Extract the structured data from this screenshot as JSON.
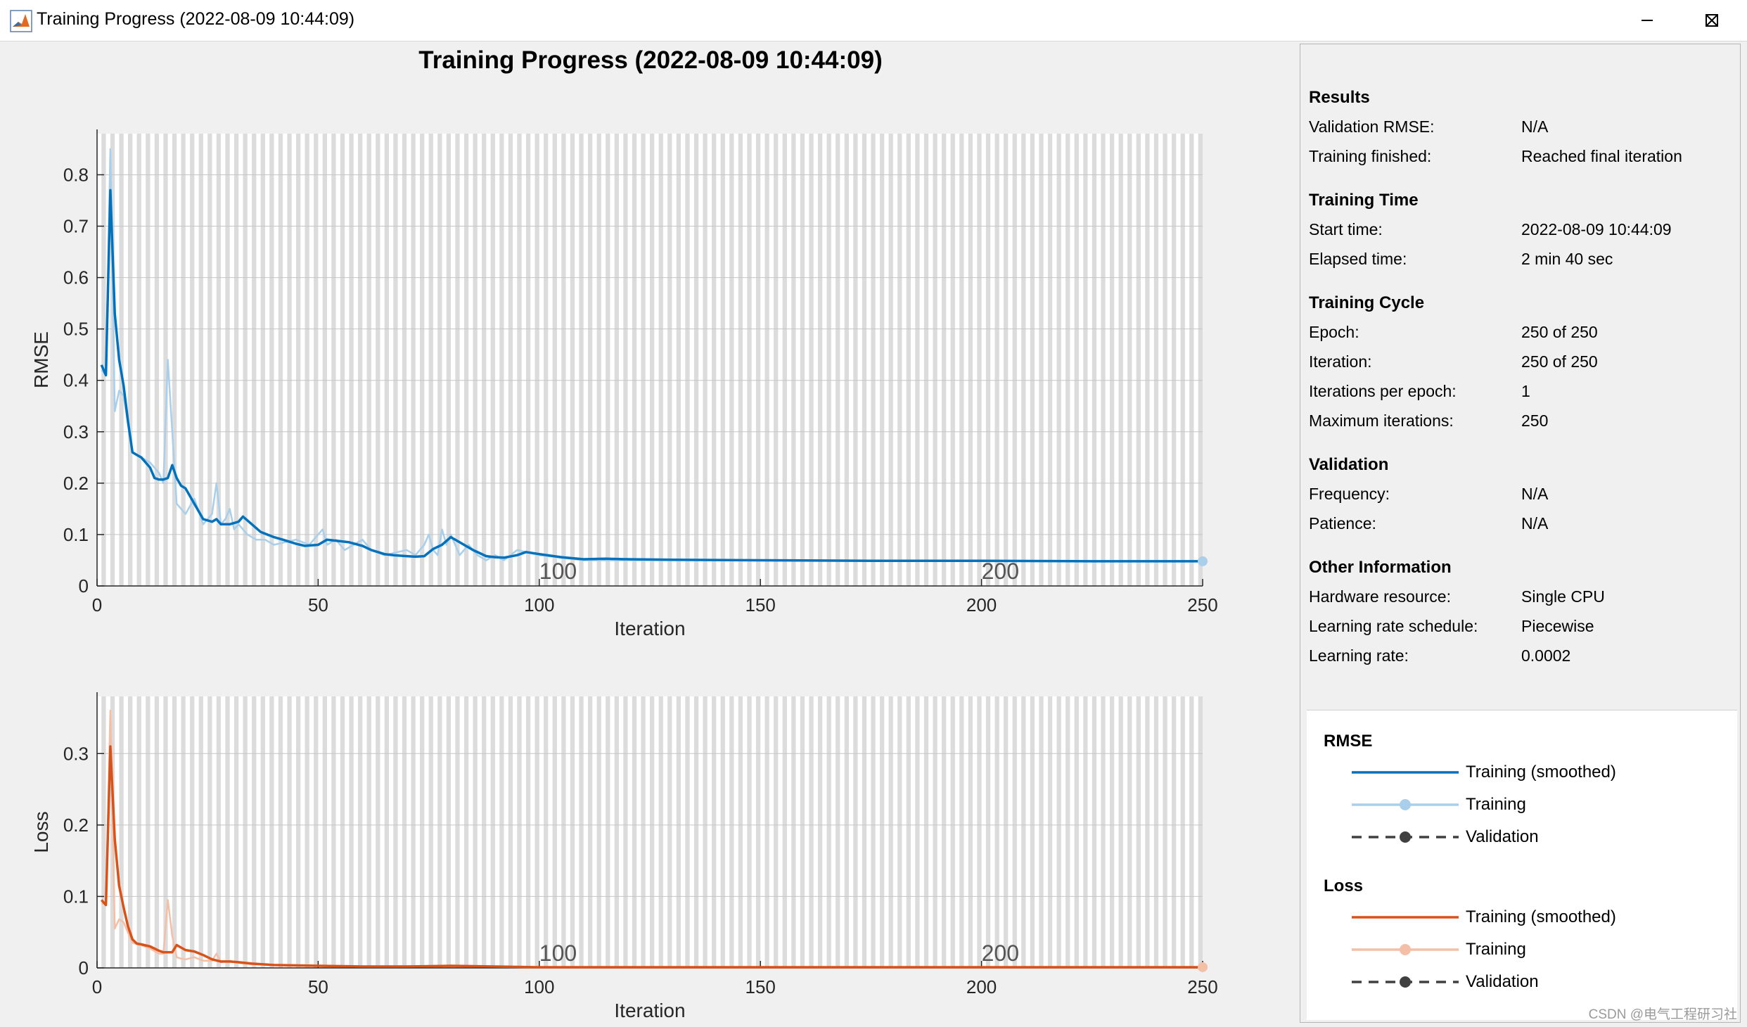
{
  "window": {
    "title": "Training Progress (2022-08-09 10:44:09)",
    "icon": "matlab-icon",
    "controls": [
      "minimize-icon",
      "maximize-icon",
      "close-icon"
    ]
  },
  "main": {
    "title": "Training Progress (2022-08-09 10:44:09)"
  },
  "colors": {
    "rmse_smoothed": "#0072bd",
    "rmse_raw": "#a9cfea",
    "loss_smoothed": "#d95319",
    "loss_raw": "#f4bfa7",
    "validation": "#404040",
    "stripe": "#dcdcdc"
  },
  "chart_data": [
    {
      "type": "line",
      "ylabel": "RMSE",
      "xlabel": "Iteration",
      "xlim": [
        0,
        250
      ],
      "ylim": [
        0,
        0.88
      ],
      "xticks": [
        0,
        50,
        100,
        150,
        200,
        250
      ],
      "yticks": [
        0,
        0.1,
        0.2,
        0.3,
        0.4,
        0.5,
        0.6,
        0.7,
        0.8
      ],
      "ytick_labels": [
        "0",
        "0.1",
        "0.2",
        "0.3",
        "0.4",
        "0.5",
        "0.6",
        "0.7",
        "0.8"
      ],
      "epoch_markers": [
        {
          "x": 100,
          "label": "100"
        },
        {
          "x": 200,
          "label": "200"
        }
      ],
      "grid": true,
      "series": [
        {
          "name": "Training (smoothed)",
          "x": [
            1,
            2,
            3,
            4,
            5,
            6,
            7,
            8,
            9,
            10,
            11,
            12,
            13,
            14,
            15,
            16,
            17,
            18,
            19,
            20,
            22,
            24,
            26,
            27,
            28,
            30,
            32,
            33,
            35,
            37,
            40,
            42,
            45,
            47,
            50,
            52,
            55,
            57,
            60,
            62,
            65,
            67,
            70,
            72,
            74,
            76,
            78,
            80,
            82,
            85,
            88,
            90,
            92,
            95,
            97,
            100,
            105,
            110,
            115,
            120,
            130,
            150,
            175,
            200,
            225,
            250
          ],
          "y": [
            0.43,
            0.41,
            0.77,
            0.53,
            0.44,
            0.39,
            0.32,
            0.26,
            0.255,
            0.25,
            0.24,
            0.23,
            0.21,
            0.207,
            0.207,
            0.21,
            0.235,
            0.21,
            0.195,
            0.19,
            0.16,
            0.13,
            0.125,
            0.13,
            0.12,
            0.12,
            0.125,
            0.135,
            0.12,
            0.105,
            0.095,
            0.09,
            0.082,
            0.078,
            0.08,
            0.09,
            0.087,
            0.085,
            0.078,
            0.07,
            0.062,
            0.06,
            0.058,
            0.057,
            0.058,
            0.072,
            0.08,
            0.095,
            0.085,
            0.07,
            0.058,
            0.056,
            0.055,
            0.06,
            0.066,
            0.062,
            0.056,
            0.052,
            0.053,
            0.052,
            0.051,
            0.05,
            0.049,
            0.049,
            0.048,
            0.048
          ]
        },
        {
          "name": "Training",
          "x": [
            1,
            2,
            3,
            4,
            5,
            6,
            8,
            10,
            12,
            14,
            15,
            16,
            17,
            18,
            19,
            20,
            22,
            24,
            25,
            26,
            27,
            28,
            29,
            30,
            31,
            32,
            34,
            36,
            38,
            40,
            45,
            48,
            50,
            51,
            52,
            54,
            56,
            58,
            60,
            62,
            65,
            70,
            72,
            74,
            75,
            76,
            77,
            78,
            79,
            80,
            82,
            84,
            86,
            88,
            90,
            92,
            95,
            100,
            110,
            120,
            150,
            200,
            250
          ],
          "y": [
            0.42,
            0.41,
            0.85,
            0.34,
            0.38,
            0.37,
            0.26,
            0.25,
            0.24,
            0.22,
            0.2,
            0.44,
            0.3,
            0.16,
            0.15,
            0.14,
            0.17,
            0.12,
            0.13,
            0.14,
            0.2,
            0.12,
            0.13,
            0.15,
            0.11,
            0.12,
            0.1,
            0.09,
            0.09,
            0.08,
            0.09,
            0.08,
            0.1,
            0.11,
            0.08,
            0.09,
            0.07,
            0.08,
            0.09,
            0.07,
            0.06,
            0.07,
            0.06,
            0.08,
            0.1,
            0.07,
            0.06,
            0.11,
            0.08,
            0.1,
            0.06,
            0.08,
            0.06,
            0.05,
            0.06,
            0.05,
            0.07,
            0.06,
            0.05,
            0.05,
            0.05,
            0.048,
            0.048
          ]
        },
        {
          "name": "Validation",
          "x": [],
          "y": []
        }
      ]
    },
    {
      "type": "line",
      "ylabel": "Loss",
      "xlabel": "Iteration",
      "xlim": [
        0,
        250
      ],
      "ylim": [
        0,
        0.38
      ],
      "xticks": [
        0,
        50,
        100,
        150,
        200,
        250
      ],
      "yticks": [
        0,
        0.1,
        0.2,
        0.3
      ],
      "ytick_labels": [
        "0",
        "0.1",
        "0.2",
        "0.3"
      ],
      "epoch_markers": [
        {
          "x": 100,
          "label": "100"
        },
        {
          "x": 200,
          "label": "200"
        }
      ],
      "grid": true,
      "series": [
        {
          "name": "Training (smoothed)",
          "x": [
            1,
            2,
            3,
            4,
            5,
            6,
            7,
            8,
            9,
            10,
            12,
            14,
            15,
            16,
            17,
            18,
            20,
            22,
            24,
            26,
            28,
            30,
            32,
            35,
            40,
            50,
            60,
            70,
            80,
            90,
            100,
            150,
            200,
            250
          ],
          "y": [
            0.095,
            0.088,
            0.31,
            0.18,
            0.115,
            0.085,
            0.058,
            0.04,
            0.034,
            0.033,
            0.03,
            0.024,
            0.022,
            0.022,
            0.022,
            0.032,
            0.025,
            0.023,
            0.018,
            0.012,
            0.009,
            0.009,
            0.008,
            0.006,
            0.004,
            0.003,
            0.002,
            0.002,
            0.003,
            0.002,
            0.001,
            0.001,
            0.001,
            0.001
          ]
        },
        {
          "name": "Training",
          "x": [
            1,
            2,
            3,
            4,
            5,
            6,
            8,
            10,
            12,
            14,
            15,
            16,
            17,
            18,
            19,
            20,
            22,
            24,
            26,
            27,
            28,
            30,
            32,
            35,
            40,
            50,
            60,
            80,
            100,
            150,
            200,
            250
          ],
          "y": [
            0.09,
            0.09,
            0.36,
            0.055,
            0.068,
            0.064,
            0.035,
            0.032,
            0.027,
            0.02,
            0.02,
            0.095,
            0.045,
            0.015,
            0.013,
            0.012,
            0.015,
            0.01,
            0.01,
            0.02,
            0.008,
            0.01,
            0.007,
            0.005,
            0.004,
            0.003,
            0.002,
            0.003,
            0.001,
            0.001,
            0.001,
            0.001
          ]
        },
        {
          "name": "Validation",
          "x": [],
          "y": []
        }
      ]
    }
  ],
  "panel": {
    "sections": [
      {
        "title": "Results",
        "rows": [
          {
            "label": "Validation RMSE:",
            "value": "N/A"
          },
          {
            "label": "Training finished:",
            "value": "Reached final iteration"
          }
        ]
      },
      {
        "title": "Training Time",
        "rows": [
          {
            "label": "Start time:",
            "value": "2022-08-09 10:44:09"
          },
          {
            "label": "Elapsed time:",
            "value": "2 min 40 sec"
          }
        ]
      },
      {
        "title": "Training Cycle",
        "rows": [
          {
            "label": "Epoch:",
            "value": "250 of 250"
          },
          {
            "label": "Iteration:",
            "value": "250 of 250"
          },
          {
            "label": "Iterations per epoch:",
            "value": "1"
          },
          {
            "label": "Maximum iterations:",
            "value": "250"
          }
        ]
      },
      {
        "title": "Validation",
        "rows": [
          {
            "label": "Frequency:",
            "value": "N/A"
          },
          {
            "label": "Patience:",
            "value": "N/A"
          }
        ]
      },
      {
        "title": "Other Information",
        "rows": [
          {
            "label": "Hardware resource:",
            "value": "Single CPU"
          },
          {
            "label": "Learning rate schedule:",
            "value": "Piecewise"
          },
          {
            "label": "Learning rate:",
            "value": "0.0002"
          }
        ]
      }
    ]
  },
  "legend": {
    "groups": [
      {
        "title": "RMSE",
        "items": [
          {
            "label": "Training (smoothed)",
            "style": "smoothed"
          },
          {
            "label": "Training",
            "style": "raw"
          },
          {
            "label": "Validation",
            "style": "validation"
          }
        ]
      },
      {
        "title": "Loss",
        "items": [
          {
            "label": "Training (smoothed)",
            "style": "smoothed"
          },
          {
            "label": "Training",
            "style": "raw"
          },
          {
            "label": "Validation",
            "style": "validation"
          }
        ]
      }
    ]
  },
  "watermark": "CSDN @电气工程研习社"
}
